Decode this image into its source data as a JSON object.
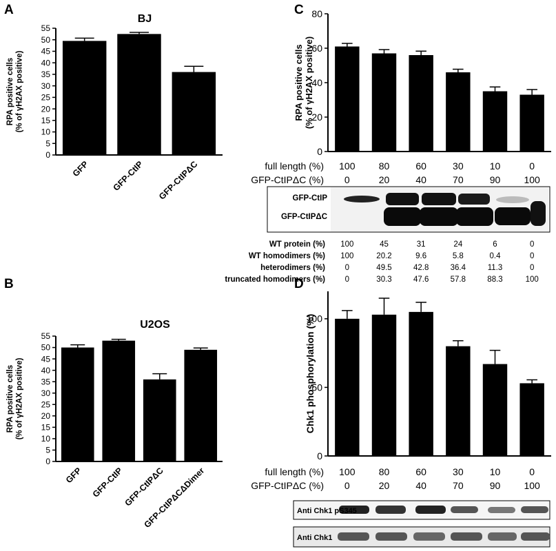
{
  "panels": {
    "A": {
      "letter": "A",
      "title": "BJ"
    },
    "B": {
      "letter": "B",
      "title": "U2OS"
    },
    "C": {
      "letter": "C"
    },
    "D": {
      "letter": "D"
    }
  },
  "chart_data": [
    {
      "id": "A",
      "type": "bar",
      "title": "BJ",
      "ylabel_line1": "RPA positive cells",
      "ylabel_line2": "(% of γH2AX positive)",
      "categories": [
        "GFP",
        "GFP-CtIP",
        "GFP-CtIPΔC"
      ],
      "values": [
        49.5,
        52.5,
        36
      ],
      "errors": [
        1.2,
        0.7,
        2.5
      ],
      "ylim": [
        0,
        55
      ],
      "yticks": [
        "0",
        "5",
        "10",
        "15",
        "20",
        "25",
        "30",
        "35",
        "40",
        "45",
        "50",
        "55"
      ]
    },
    {
      "id": "B",
      "type": "bar",
      "title": "U2OS",
      "ylabel_line1": "RPA positive cells",
      "ylabel_line2": "(% of γH2AX positive)",
      "categories": [
        "GFP",
        "GFP-CtIP",
        "GFP-CtIPΔC",
        "GFP-CtIPΔCΔDimer"
      ],
      "values": [
        50,
        53,
        36,
        49
      ],
      "errors": [
        1.2,
        0.6,
        2.5,
        0.8
      ],
      "ylim": [
        0,
        55
      ],
      "yticks": [
        "0",
        "5",
        "10",
        "15",
        "20",
        "25",
        "30",
        "35",
        "40",
        "45",
        "50",
        "55"
      ]
    },
    {
      "id": "C",
      "type": "bar",
      "ylabel_line1": "RPA positive cells",
      "ylabel_line2": "(% of γH2AX positive)",
      "values": [
        61,
        57,
        56,
        46,
        35,
        33
      ],
      "errors": [
        1.8,
        2.2,
        2.3,
        1.8,
        2.5,
        3.0
      ],
      "ylim": [
        0,
        80
      ],
      "yticks": [
        "0",
        "20",
        "40",
        "60",
        "80"
      ],
      "row_labels": [
        "full length (%)",
        "GFP-CtIPΔC (%)"
      ],
      "full_length": [
        "100",
        "80",
        "60",
        "30",
        "10",
        "0"
      ],
      "ctip_dc": [
        "0",
        "20",
        "40",
        "70",
        "90",
        "100"
      ],
      "blot_labels": [
        "GFP-CtIP",
        "GFP-CtIPΔC"
      ],
      "table": {
        "rows": [
          {
            "label": "WT protein (%)",
            "values": [
              "100",
              "45",
              "31",
              "24",
              "6",
              "0"
            ]
          },
          {
            "label": "WT homodimers (%)",
            "values": [
              "100",
              "20.2",
              "9.6",
              "5.8",
              "0.4",
              "0"
            ]
          },
          {
            "label": "heterodimers (%)",
            "values": [
              "0",
              "49.5",
              "42.8",
              "36.4",
              "11.3",
              "0"
            ]
          },
          {
            "label": "truncated homodimers (%)",
            "values": [
              "0",
              "30.3",
              "47.6",
              "57.8",
              "88.3",
              "100"
            ]
          }
        ]
      }
    },
    {
      "id": "D",
      "type": "bar",
      "ylabel": "Chk1 phosphorylation (%)",
      "values": [
        100,
        103,
        105,
        80,
        67,
        53
      ],
      "errors": [
        6,
        12,
        7,
        4,
        10,
        2.5
      ],
      "ylim": [
        0,
        120
      ],
      "yticks": [
        "0",
        "50",
        "100"
      ],
      "row_labels": [
        "full length (%)",
        "GFP-CtIPΔC (%)"
      ],
      "full_length": [
        "100",
        "80",
        "60",
        "30",
        "10",
        "0"
      ],
      "ctip_dc": [
        "0",
        "20",
        "40",
        "70",
        "90",
        "100"
      ],
      "blot_labels": [
        "Anti Chk1 pS345",
        "Anti Chk1"
      ]
    }
  ]
}
